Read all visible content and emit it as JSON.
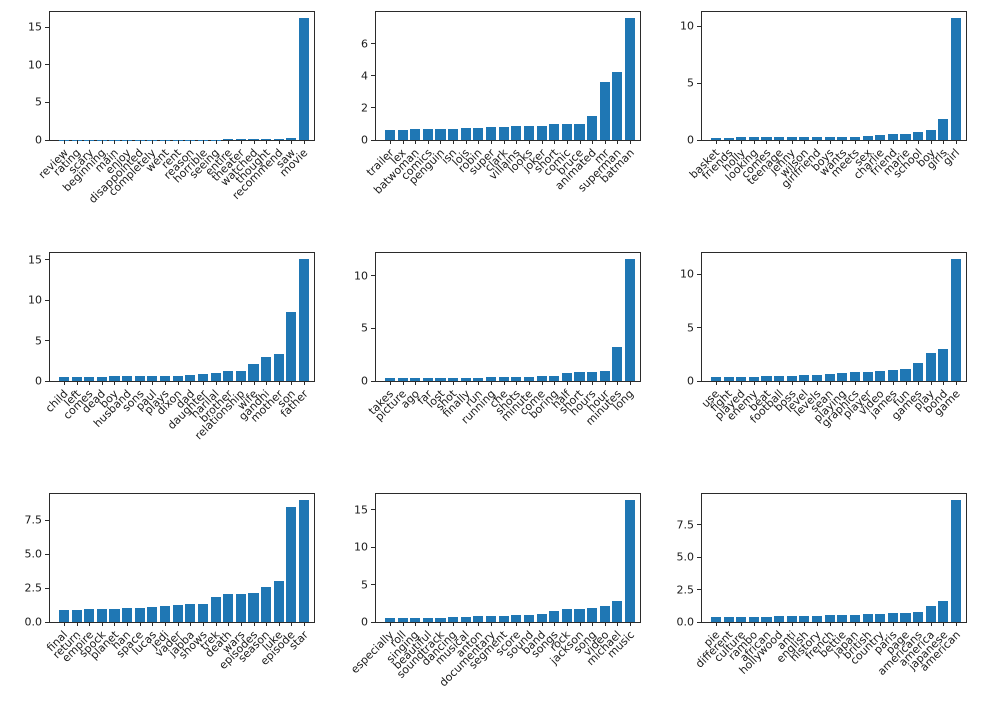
{
  "figure": {
    "background": "#ffffff"
  },
  "colors": {
    "bar": "#1f77b4",
    "axis": "#2b2b2b",
    "text": "#1a1a1a"
  },
  "chart_data": [
    {
      "type": "bar",
      "grid": "top-left",
      "legend": "none",
      "gridlines": false,
      "categories": [
        "review",
        "rating",
        "scary",
        "beginning",
        "main",
        "enjoy",
        "disappointed",
        "completely",
        "went",
        "rent",
        "reason",
        "horrible",
        "seeing",
        "entire",
        "theater",
        "watched",
        "thought",
        "recommend",
        "saw",
        "movie"
      ],
      "values": [
        0.02,
        0.02,
        0.03,
        0.03,
        0.03,
        0.04,
        0.05,
        0.05,
        0.05,
        0.05,
        0.06,
        0.06,
        0.06,
        0.07,
        0.07,
        0.08,
        0.09,
        0.12,
        0.22,
        16.2
      ],
      "ylim": [
        0,
        17.0
      ],
      "ytick_values": [
        0,
        5,
        10,
        15
      ],
      "ytick_labels": [
        "0",
        "5",
        "10",
        "15"
      ]
    },
    {
      "type": "bar",
      "grid": "top-middle",
      "legend": "none",
      "gridlines": false,
      "categories": [
        "trailer",
        "lex",
        "batwoman",
        "comics",
        "penguin",
        "isn",
        "lois",
        "robin",
        "super",
        "clark",
        "villains",
        "looks",
        "joker",
        "short",
        "comic",
        "bruce",
        "animated",
        "mr",
        "superman",
        "batman"
      ],
      "values": [
        0.62,
        0.65,
        0.67,
        0.7,
        0.7,
        0.7,
        0.72,
        0.75,
        0.8,
        0.83,
        0.85,
        0.85,
        0.88,
        1.0,
        1.0,
        1.0,
        1.5,
        3.6,
        4.25,
        7.6
      ],
      "ylim": [
        0,
        7.98
      ],
      "ytick_values": [
        0,
        2,
        4,
        6
      ],
      "ytick_labels": [
        "0",
        "2",
        "4",
        "6"
      ]
    },
    {
      "type": "bar",
      "grid": "top-right",
      "legend": "none",
      "gridlines": false,
      "categories": [
        "basket",
        "friends",
        "holly",
        "looking",
        "comes",
        "teenage",
        "jenny",
        "wilson",
        "girlfriend",
        "boys",
        "wants",
        "meets",
        "sex",
        "charlie",
        "friend",
        "marie",
        "school",
        "boy",
        "girls",
        "girl"
      ],
      "values": [
        0.22,
        0.22,
        0.23,
        0.24,
        0.24,
        0.25,
        0.25,
        0.25,
        0.26,
        0.27,
        0.28,
        0.3,
        0.35,
        0.4,
        0.5,
        0.55,
        0.7,
        0.85,
        1.85,
        10.7
      ],
      "ylim": [
        0,
        11.24
      ],
      "ytick_values": [
        0,
        5,
        10
      ],
      "ytick_labels": [
        "0",
        "5",
        "10"
      ]
    },
    {
      "type": "bar",
      "grid": "middle-left",
      "legend": "none",
      "gridlines": false,
      "categories": [
        "child",
        "left",
        "comes",
        "dead",
        "boy",
        "husband",
        "sons",
        "paul",
        "plays",
        "dixon",
        "dad",
        "daughter",
        "harilal",
        "brother",
        "relationship",
        "wife",
        "gandhi",
        "mother",
        "son",
        "father"
      ],
      "values": [
        0.52,
        0.55,
        0.55,
        0.55,
        0.58,
        0.58,
        0.6,
        0.62,
        0.65,
        0.68,
        0.7,
        0.9,
        0.95,
        1.2,
        1.25,
        2.1,
        3.0,
        3.4,
        8.5,
        15.1
      ],
      "ylim": [
        0,
        15.86
      ],
      "ytick_values": [
        0,
        5,
        10,
        15
      ],
      "ytick_labels": [
        "0",
        "5",
        "10",
        "15"
      ]
    },
    {
      "type": "bar",
      "grid": "middle-middle",
      "legend": "none",
      "gridlines": false,
      "categories": [
        "takes",
        "picture",
        "ago",
        "far",
        "lost",
        "shot",
        "finally",
        "run",
        "running",
        "che",
        "shots",
        "minute",
        "come",
        "boring",
        "half",
        "short",
        "hours",
        "hour",
        "minutes",
        "long"
      ],
      "values": [
        0.25,
        0.25,
        0.27,
        0.28,
        0.3,
        0.3,
        0.3,
        0.32,
        0.35,
        0.38,
        0.4,
        0.42,
        0.5,
        0.5,
        0.8,
        0.85,
        0.85,
        0.95,
        3.25,
        11.6
      ],
      "ylim": [
        0,
        12.18
      ],
      "ytick_values": [
        0,
        5,
        10
      ],
      "ytick_labels": [
        "0",
        "5",
        "10"
      ]
    },
    {
      "type": "bar",
      "grid": "middle-right",
      "legend": "none",
      "gridlines": false,
      "categories": [
        "use",
        "fight",
        "played",
        "enemy",
        "beat",
        "football",
        "boss",
        "level",
        "levels",
        "sean",
        "playing",
        "graphics",
        "player",
        "video",
        "james",
        "fun",
        "games",
        "play",
        "bond",
        "game"
      ],
      "values": [
        0.4,
        0.4,
        0.42,
        0.42,
        0.45,
        0.48,
        0.5,
        0.55,
        0.6,
        0.65,
        0.75,
        0.8,
        0.85,
        0.9,
        1.05,
        1.15,
        1.7,
        2.6,
        2.95,
        11.4
      ],
      "ylim": [
        0,
        11.97
      ],
      "ytick_values": [
        0,
        5,
        10
      ],
      "ytick_labels": [
        "0",
        "5",
        "10"
      ]
    },
    {
      "type": "bar",
      "grid": "bottom-left",
      "legend": "none",
      "gridlines": false,
      "categories": [
        "final",
        "return",
        "empire",
        "spock",
        "planet",
        "han",
        "space",
        "lucas",
        "jedi",
        "vader",
        "jabba",
        "shows",
        "trek",
        "death",
        "wars",
        "episodes",
        "season",
        "luke",
        "episode",
        "star"
      ],
      "values": [
        0.88,
        0.92,
        0.95,
        0.95,
        0.98,
        1.0,
        1.05,
        1.1,
        1.15,
        1.25,
        1.3,
        1.35,
        1.85,
        2.05,
        2.05,
        2.15,
        2.6,
        3.0,
        8.5,
        9.0
      ],
      "ylim": [
        0,
        9.45
      ],
      "ytick_values": [
        0,
        2.5,
        5,
        7.5
      ],
      "ytick_labels": [
        "0.0",
        "2.5",
        "5.0",
        "7.5"
      ]
    },
    {
      "type": "bar",
      "grid": "bottom-middle",
      "legend": "none",
      "gridlines": false,
      "categories": [
        "especially",
        "roll",
        "singing",
        "beautiful",
        "soundtrack",
        "dancing",
        "musical",
        "anton",
        "documentary",
        "segment",
        "score",
        "sound",
        "band",
        "songs",
        "rock",
        "jackson",
        "song",
        "video",
        "michael",
        "music"
      ],
      "values": [
        0.5,
        0.52,
        0.55,
        0.6,
        0.6,
        0.62,
        0.7,
        0.78,
        0.82,
        0.85,
        0.9,
        0.95,
        1.05,
        1.5,
        1.7,
        1.8,
        1.9,
        2.1,
        2.8,
        16.3
      ],
      "ylim": [
        0,
        17.12
      ],
      "ytick_values": [
        0,
        5,
        10,
        15
      ],
      "ytick_labels": [
        "0",
        "5",
        "10",
        "15"
      ]
    },
    {
      "type": "bar",
      "grid": "bottom-right",
      "legend": "none",
      "gridlines": false,
      "categories": [
        "pie",
        "different",
        "culture",
        "rambo",
        "african",
        "hollywood",
        "anti",
        "english",
        "history",
        "french",
        "bettie",
        "japan",
        "british",
        "country",
        "paris",
        "page",
        "americans",
        "america",
        "japanese",
        "american"
      ],
      "values": [
        0.35,
        0.38,
        0.4,
        0.4,
        0.42,
        0.45,
        0.45,
        0.48,
        0.5,
        0.52,
        0.55,
        0.55,
        0.58,
        0.62,
        0.68,
        0.72,
        0.78,
        1.2,
        1.65,
        9.4
      ],
      "ylim": [
        0,
        9.87
      ],
      "ytick_values": [
        0,
        2.5,
        5,
        7.5
      ],
      "ytick_labels": [
        "0.0",
        "2.5",
        "5.0",
        "7.5"
      ]
    }
  ]
}
